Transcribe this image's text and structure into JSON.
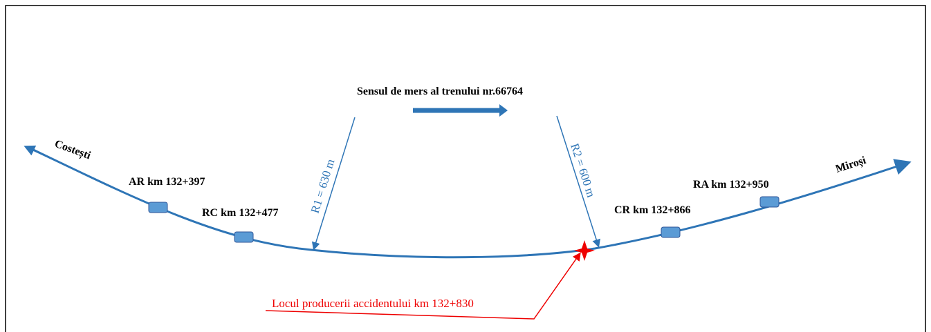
{
  "direction_label": "Sensul de mers al trenului nr.66764",
  "stations": {
    "left": "Costești",
    "right": "Miroși"
  },
  "points": [
    {
      "label": "AR km 132+397"
    },
    {
      "label": "RC km 132+477"
    },
    {
      "label": "CR km 132+866"
    },
    {
      "label": "RA km 132+950"
    }
  ],
  "radii": [
    {
      "label": "R1 = 630 m"
    },
    {
      "label": "R2 = 600 m"
    }
  ],
  "accident_label": "Locul producerii accidentului km 132+830"
}
